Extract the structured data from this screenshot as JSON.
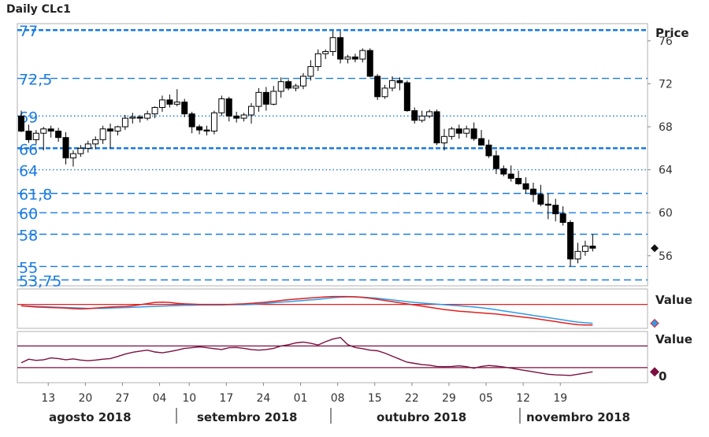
{
  "header": {
    "title": "Daily CLc1"
  },
  "chart_data": {
    "type": "candlestick",
    "title": "Daily CLc1",
    "price_axis_label": "Price",
    "price_ticks": [
      "76",
      "72",
      "68",
      "64",
      "60",
      "56"
    ],
    "ylim": [
      53.2,
      77.6
    ],
    "levels": [
      {
        "value": 77,
        "label": "77",
        "style": "thick-dash"
      },
      {
        "value": 72.5,
        "label": "72,5",
        "style": "dash"
      },
      {
        "value": 69,
        "label": "69",
        "style": "dot"
      },
      {
        "value": 66,
        "label": "66",
        "style": "thick-dash"
      },
      {
        "value": 64,
        "label": "64",
        "style": "dot"
      },
      {
        "value": 61.8,
        "label": "61,8",
        "style": "dash"
      },
      {
        "value": 60,
        "label": "60",
        "style": "dash"
      },
      {
        "value": 58,
        "label": "58",
        "style": "dash"
      },
      {
        "value": 55,
        "label": "55",
        "style": "dash"
      },
      {
        "value": 53.75,
        "label": "53,75",
        "style": "dash"
      }
    ],
    "last_value_marker": 56.7,
    "date_ticks": [
      "13",
      "20",
      "27",
      "04",
      "10",
      "17",
      "24",
      "01",
      "08",
      "15",
      "22",
      "29",
      "05",
      "12",
      "19"
    ],
    "month_labels": [
      "agosto 2018",
      "setembro 2018",
      "outubro 2018",
      "novembro 2018"
    ],
    "candles": [
      [
        69.0,
        69.5,
        67.5,
        67.6
      ],
      [
        67.6,
        68.2,
        66.5,
        66.8
      ],
      [
        66.8,
        67.7,
        66.4,
        67.4
      ],
      [
        67.4,
        68.0,
        65.8,
        67.8
      ],
      [
        67.8,
        68.1,
        67.0,
        67.6
      ],
      [
        67.6,
        67.9,
        66.6,
        67.0
      ],
      [
        67.0,
        67.5,
        64.5,
        65.1
      ],
      [
        65.1,
        65.8,
        64.3,
        65.5
      ],
      [
        65.5,
        66.3,
        65.2,
        66.0
      ],
      [
        66.0,
        66.7,
        65.6,
        66.4
      ],
      [
        66.4,
        67.1,
        65.9,
        66.8
      ],
      [
        66.8,
        68.1,
        66.4,
        67.8
      ],
      [
        67.8,
        68.3,
        66.0,
        67.6
      ],
      [
        67.6,
        68.1,
        67.2,
        68.0
      ],
      [
        68.0,
        69.1,
        67.7,
        68.8
      ],
      [
        68.8,
        69.3,
        68.3,
        68.9
      ],
      [
        68.9,
        69.1,
        68.4,
        68.8
      ],
      [
        68.8,
        69.5,
        68.6,
        69.2
      ],
      [
        69.2,
        69.9,
        68.8,
        69.8
      ],
      [
        69.8,
        70.9,
        69.4,
        70.5
      ],
      [
        70.5,
        71.0,
        69.8,
        70.1
      ],
      [
        70.1,
        71.5,
        69.9,
        70.3
      ],
      [
        70.3,
        70.6,
        68.9,
        69.2
      ],
      [
        69.2,
        69.4,
        67.4,
        68.0
      ],
      [
        68.0,
        68.2,
        67.3,
        67.7
      ],
      [
        67.7,
        68.1,
        67.2,
        67.6
      ],
      [
        67.6,
        69.5,
        67.3,
        69.3
      ],
      [
        69.3,
        70.9,
        69.0,
        70.6
      ],
      [
        70.6,
        70.8,
        68.5,
        69.0
      ],
      [
        69.0,
        69.4,
        68.4,
        68.8
      ],
      [
        68.8,
        69.3,
        68.5,
        69.1
      ],
      [
        69.1,
        70.2,
        68.3,
        69.9
      ],
      [
        69.9,
        71.6,
        69.4,
        71.2
      ],
      [
        71.2,
        71.7,
        69.5,
        70.1
      ],
      [
        70.1,
        71.8,
        70.0,
        71.3
      ],
      [
        71.3,
        72.6,
        70.7,
        72.2
      ],
      [
        72.2,
        72.4,
        71.4,
        71.6
      ],
      [
        71.6,
        72.0,
        71.3,
        71.8
      ],
      [
        71.8,
        73.0,
        71.5,
        72.7
      ],
      [
        72.7,
        74.2,
        72.3,
        73.6
      ],
      [
        73.6,
        75.2,
        73.2,
        74.8
      ],
      [
        74.8,
        75.2,
        74.3,
        75.0
      ],
      [
        75.0,
        76.9,
        74.6,
        76.3
      ],
      [
        76.3,
        76.9,
        73.9,
        74.3
      ],
      [
        74.3,
        74.7,
        73.9,
        74.5
      ],
      [
        74.5,
        74.8,
        74.0,
        74.3
      ],
      [
        74.3,
        75.3,
        74.0,
        75.1
      ],
      [
        75.1,
        75.3,
        72.6,
        72.7
      ],
      [
        72.7,
        72.9,
        70.5,
        70.8
      ],
      [
        70.8,
        71.9,
        70.6,
        71.6
      ],
      [
        71.6,
        72.7,
        71.3,
        72.3
      ],
      [
        72.3,
        72.6,
        71.4,
        72.1
      ],
      [
        72.1,
        72.3,
        69.4,
        69.5
      ],
      [
        69.5,
        69.8,
        68.3,
        68.6
      ],
      [
        68.6,
        69.5,
        68.4,
        69.0
      ],
      [
        69.0,
        69.6,
        68.8,
        69.4
      ],
      [
        69.4,
        69.6,
        66.3,
        66.5
      ],
      [
        66.5,
        67.8,
        65.8,
        67.1
      ],
      [
        67.1,
        68.0,
        66.8,
        67.8
      ],
      [
        67.8,
        68.2,
        66.9,
        67.4
      ],
      [
        67.4,
        68.1,
        67.0,
        67.8
      ],
      [
        67.8,
        68.4,
        66.7,
        66.9
      ],
      [
        66.9,
        67.7,
        66.3,
        66.3
      ],
      [
        66.3,
        66.8,
        65.1,
        65.3
      ],
      [
        65.3,
        65.8,
        63.6,
        64.1
      ],
      [
        64.1,
        64.4,
        63.4,
        63.6
      ],
      [
        63.6,
        64.4,
        62.9,
        63.2
      ],
      [
        63.2,
        63.9,
        62.6,
        62.7
      ],
      [
        62.7,
        63.3,
        61.8,
        62.2
      ],
      [
        62.2,
        62.8,
        61.0,
        61.7
      ],
      [
        61.7,
        62.6,
        60.6,
        60.8
      ],
      [
        60.8,
        61.8,
        59.4,
        60.7
      ],
      [
        60.7,
        61.3,
        59.2,
        59.9
      ],
      [
        59.9,
        60.6,
        58.8,
        59.1
      ],
      [
        59.1,
        59.3,
        55.0,
        55.7
      ],
      [
        55.7,
        57.2,
        55.3,
        56.4
      ],
      [
        56.4,
        57.4,
        56.0,
        56.9
      ],
      [
        56.9,
        58.0,
        56.4,
        56.7
      ]
    ],
    "indicator1": {
      "axis_label": "Value",
      "level": 0.45,
      "ylim": [
        -0.4,
        1.0
      ],
      "blue": [
        0.4,
        0.39,
        0.38,
        0.37,
        0.36,
        0.35,
        0.34,
        0.33,
        0.32,
        0.31,
        0.31,
        0.31,
        0.32,
        0.33,
        0.34,
        0.35,
        0.36,
        0.37,
        0.38,
        0.39,
        0.4,
        0.41,
        0.42,
        0.42,
        0.43,
        0.43,
        0.43,
        0.43,
        0.44,
        0.44,
        0.44,
        0.45,
        0.47,
        0.49,
        0.51,
        0.53,
        0.55,
        0.57,
        0.59,
        0.61,
        0.63,
        0.66,
        0.69,
        0.71,
        0.72,
        0.72,
        0.71,
        0.69,
        0.67,
        0.64,
        0.61,
        0.58,
        0.55,
        0.52,
        0.5,
        0.48,
        0.46,
        0.44,
        0.42,
        0.4,
        0.38,
        0.36,
        0.33,
        0.3,
        0.26,
        0.22,
        0.18,
        0.14,
        0.1,
        0.06,
        0.02,
        -0.02,
        -0.06,
        -0.1,
        -0.14,
        -0.18,
        -0.2,
        -0.22
      ],
      "red": [
        0.4,
        0.38,
        0.36,
        0.35,
        0.34,
        0.33,
        0.32,
        0.3,
        0.29,
        0.3,
        0.32,
        0.34,
        0.36,
        0.37,
        0.38,
        0.4,
        0.44,
        0.48,
        0.52,
        0.53,
        0.52,
        0.49,
        0.47,
        0.46,
        0.45,
        0.45,
        0.45,
        0.45,
        0.45,
        0.46,
        0.47,
        0.49,
        0.51,
        0.53,
        0.56,
        0.59,
        0.62,
        0.64,
        0.66,
        0.68,
        0.7,
        0.72,
        0.73,
        0.73,
        0.73,
        0.72,
        0.7,
        0.67,
        0.63,
        0.59,
        0.55,
        0.51,
        0.47,
        0.43,
        0.39,
        0.35,
        0.31,
        0.27,
        0.24,
        0.21,
        0.19,
        0.17,
        0.15,
        0.13,
        0.11,
        0.08,
        0.05,
        0.02,
        -0.01,
        -0.04,
        -0.08,
        -0.12,
        -0.16,
        -0.2,
        -0.24,
        -0.27,
        -0.28,
        -0.28
      ]
    },
    "indicator2": {
      "axis_label": "Value",
      "tick": "0",
      "levels": [
        0.72,
        0.0
      ],
      "ylim": [
        -0.5,
        1.2
      ],
      "line": [
        0.16,
        0.28,
        0.24,
        0.26,
        0.32,
        0.3,
        0.26,
        0.29,
        0.25,
        0.23,
        0.25,
        0.28,
        0.3,
        0.37,
        0.45,
        0.51,
        0.55,
        0.58,
        0.52,
        0.49,
        0.53,
        0.58,
        0.64,
        0.66,
        0.69,
        0.66,
        0.63,
        0.6,
        0.66,
        0.67,
        0.64,
        0.6,
        0.58,
        0.6,
        0.64,
        0.72,
        0.76,
        0.82,
        0.85,
        0.81,
        0.75,
        0.86,
        0.95,
        1.0,
        0.76,
        0.67,
        0.63,
        0.58,
        0.56,
        0.48,
        0.38,
        0.28,
        0.18,
        0.14,
        0.1,
        0.08,
        0.04,
        0.03,
        0.04,
        0.06,
        0.03,
        -0.02,
        0.04,
        0.07,
        0.05,
        0.02,
        -0.02,
        -0.06,
        -0.1,
        -0.14,
        -0.18,
        -0.22,
        -0.24,
        -0.25,
        -0.26,
        -0.22,
        -0.18,
        -0.14
      ]
    }
  }
}
